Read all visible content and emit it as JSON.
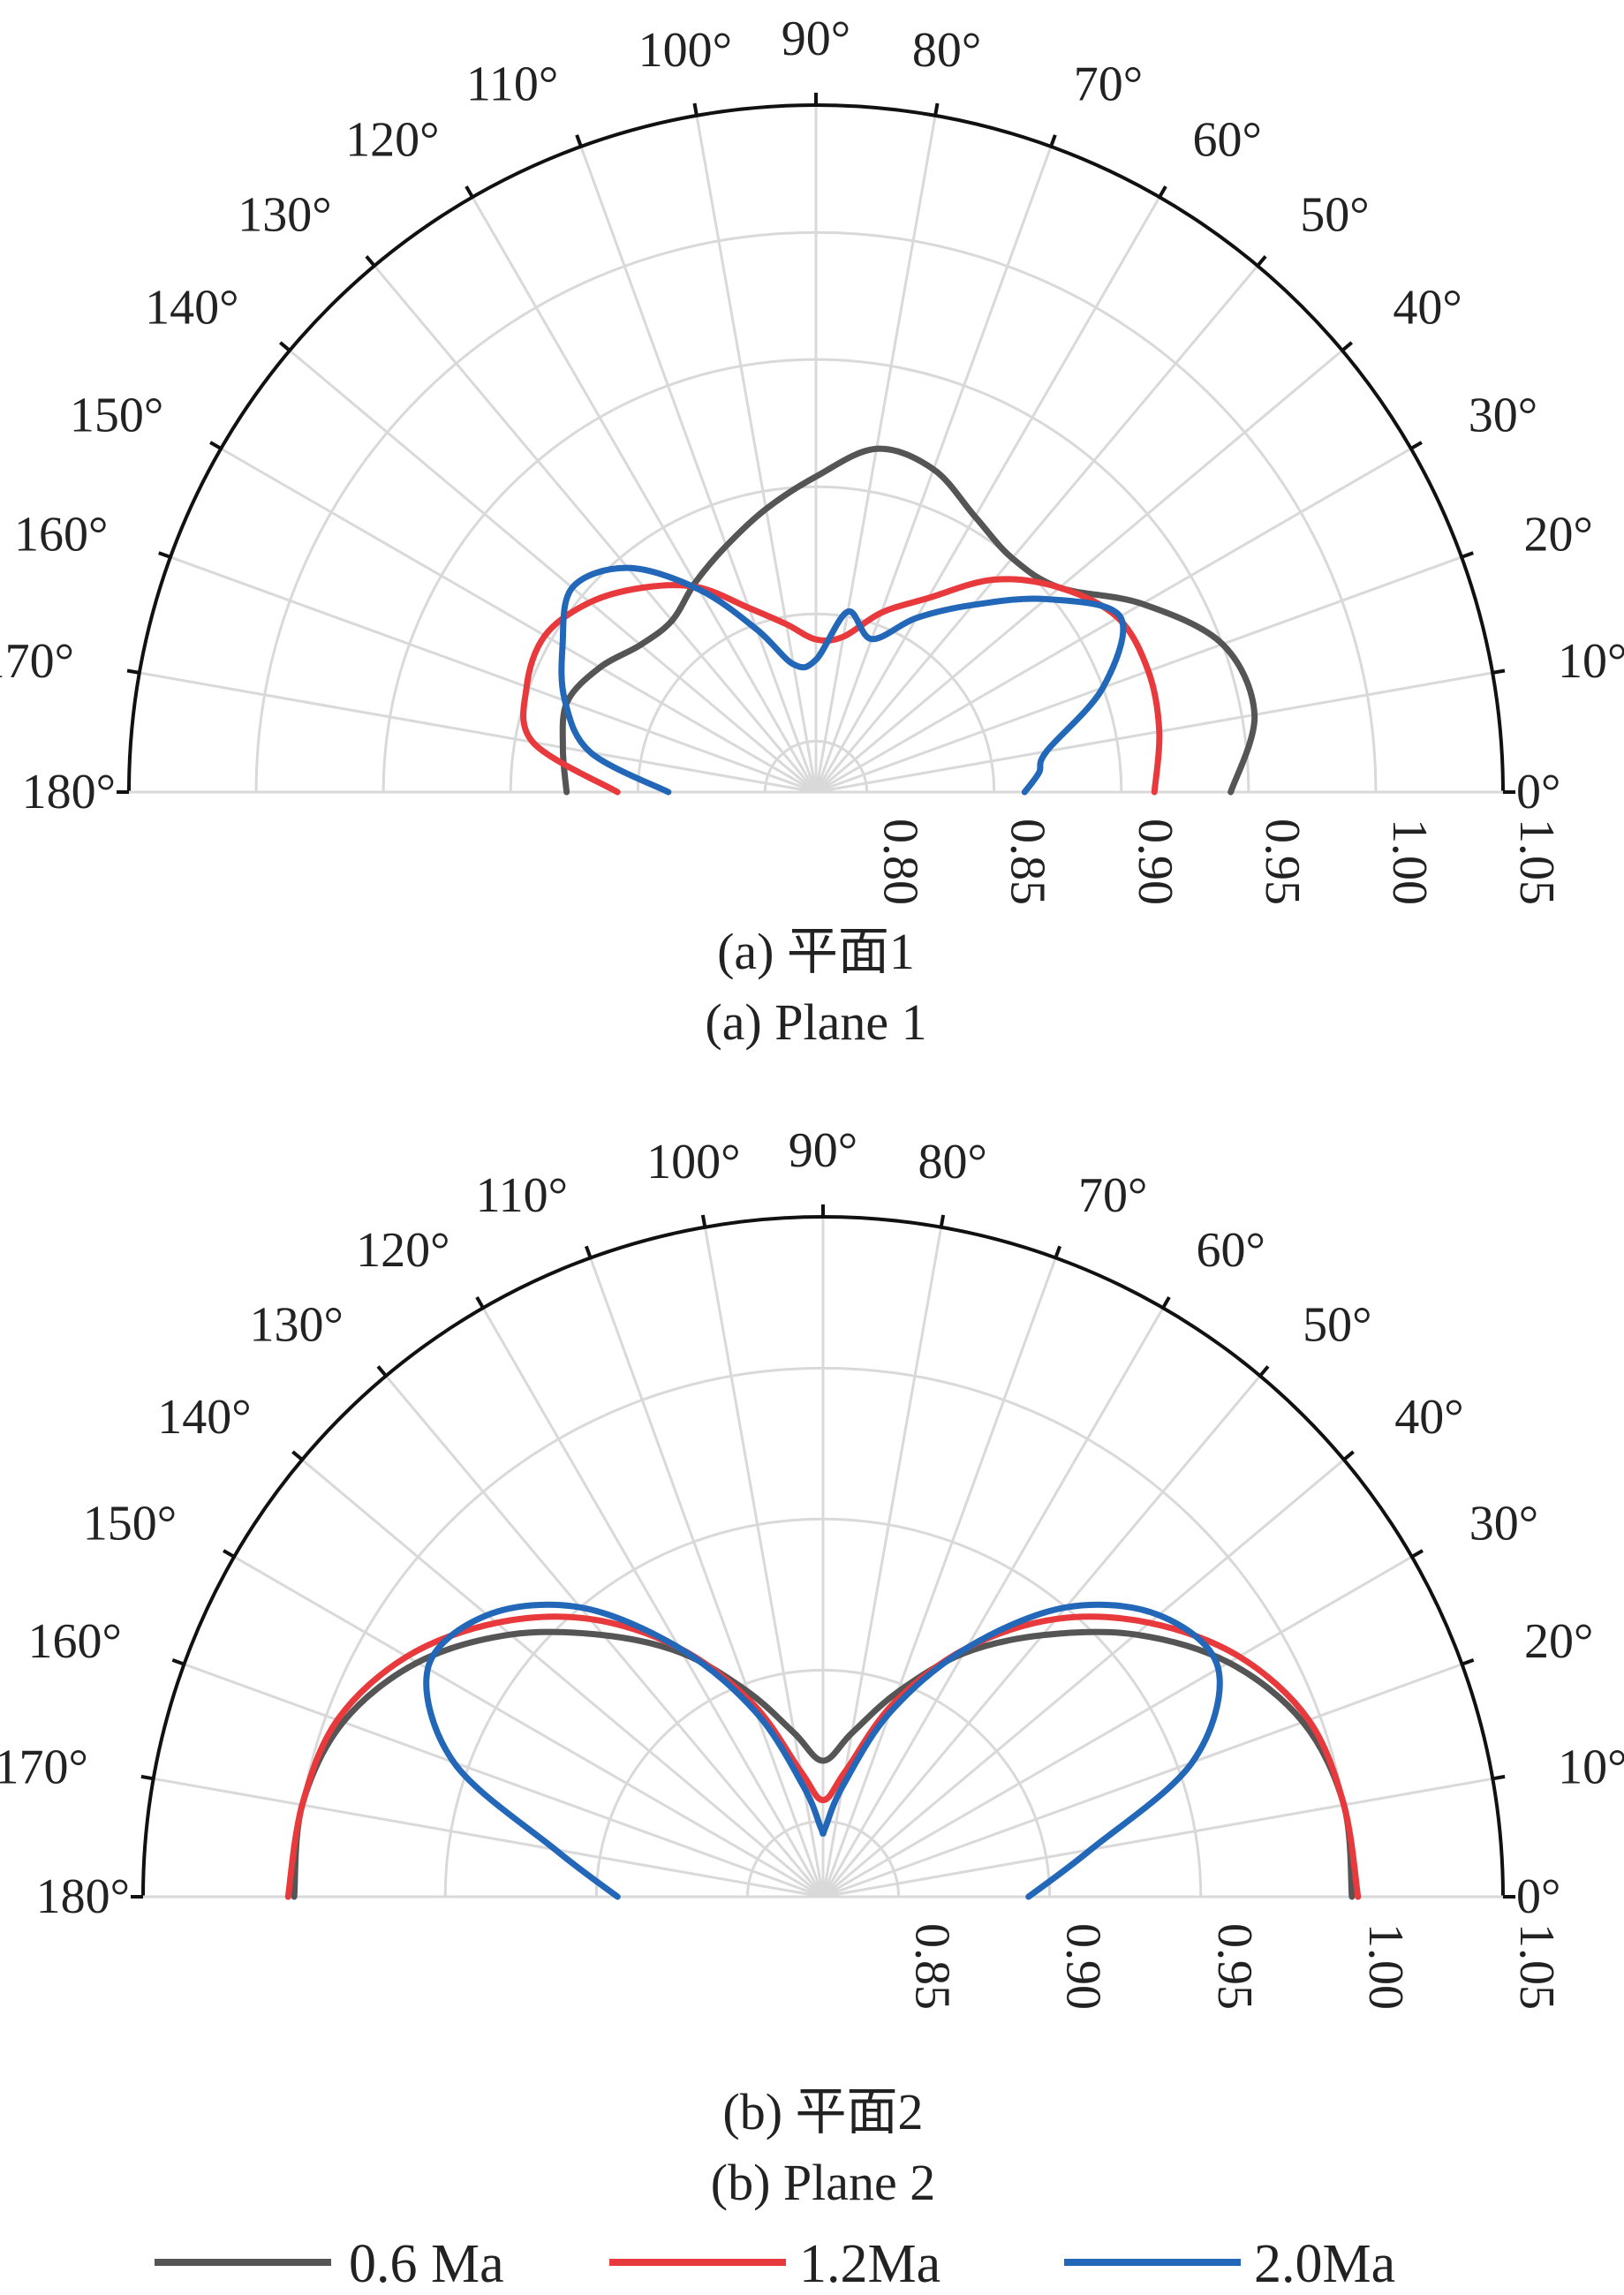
{
  "colors": {
    "s1": "#555555",
    "s2": "#e8393c",
    "s3": "#2367b8"
  },
  "chart_data": [
    {
      "type": "polar",
      "caption_cn": "(a) 平面1",
      "caption_en": "(a) Plane 1",
      "theta_range_deg": [
        0,
        180
      ],
      "theta_tick_step_deg": 10,
      "rlim": [
        0.78,
        1.05
      ],
      "r_tick_values": [
        0.8,
        0.85,
        0.9,
        0.95,
        1.0,
        1.05
      ],
      "r_tick_labels": [
        "0.80",
        "0.85",
        "0.90",
        "0.95",
        "1.00",
        "1.05"
      ],
      "grid": true,
      "series": [
        {
          "name": "0.6 Ma",
          "color_key": "s1",
          "points": [
            [
              0,
              0.943
            ],
            [
              10,
              0.955
            ],
            [
              20,
              0.95
            ],
            [
              30,
              0.928
            ],
            [
              40,
              0.905
            ],
            [
              50,
              0.9
            ],
            [
              60,
              0.905
            ],
            [
              70,
              0.915
            ],
            [
              80,
              0.917
            ],
            [
              90,
              0.904
            ],
            [
              100,
              0.893
            ],
            [
              110,
              0.883
            ],
            [
              120,
              0.875
            ],
            [
              130,
              0.868
            ],
            [
              140,
              0.87
            ],
            [
              150,
              0.878
            ],
            [
              160,
              0.884
            ],
            [
              170,
              0.881
            ],
            [
              180,
              0.878
            ]
          ]
        },
        {
          "name": "1.2Ma",
          "color_key": "s2",
          "points": [
            [
              0,
              0.913
            ],
            [
              10,
              0.917
            ],
            [
              20,
              0.919
            ],
            [
              30,
              0.917
            ],
            [
              40,
              0.905
            ],
            [
              50,
              0.889
            ],
            [
              60,
              0.868
            ],
            [
              70,
              0.855
            ],
            [
              80,
              0.842
            ],
            [
              90,
              0.84
            ],
            [
              100,
              0.847
            ],
            [
              110,
              0.857
            ],
            [
              120,
              0.873
            ],
            [
              130,
              0.885
            ],
            [
              140,
              0.896
            ],
            [
              150,
              0.903
            ],
            [
              160,
              0.901
            ],
            [
              170,
              0.893
            ],
            [
              180,
              0.858
            ]
          ]
        },
        {
          "name": "2.0Ma",
          "color_key": "s3",
          "points": [
            [
              0,
              0.862
            ],
            [
              5,
              0.868
            ],
            [
              10,
              0.872
            ],
            [
              20,
              0.9
            ],
            [
              30,
              0.918
            ],
            [
              40,
              0.898
            ],
            [
              50,
              0.876
            ],
            [
              60,
              0.859
            ],
            [
              70,
              0.844
            ],
            [
              80,
              0.852
            ],
            [
              90,
              0.832
            ],
            [
              100,
              0.831
            ],
            [
              110,
              0.848
            ],
            [
              120,
              0.872
            ],
            [
              130,
              0.895
            ],
            [
              140,
              0.905
            ],
            [
              150,
              0.895
            ],
            [
              160,
              0.885
            ],
            [
              170,
              0.87
            ],
            [
              180,
              0.838
            ]
          ]
        }
      ]
    },
    {
      "type": "polar",
      "caption_cn": "(b) 平面2",
      "caption_en": "(b) Plane 2",
      "theta_range_deg": [
        0,
        180
      ],
      "theta_tick_step_deg": 10,
      "rlim": [
        0.825,
        1.05
      ],
      "r_tick_values": [
        0.85,
        0.9,
        0.95,
        1.0,
        1.05
      ],
      "r_tick_labels": [
        "0.85",
        "0.90",
        "0.95",
        "1.00",
        "1.05"
      ],
      "grid": true,
      "series": [
        {
          "name": "0.6 Ma",
          "color_key": "s1",
          "points": [
            [
              0,
              1.0
            ],
            [
              10,
              1.0
            ],
            [
              20,
              0.994
            ],
            [
              30,
              0.98
            ],
            [
              40,
              0.96
            ],
            [
              50,
              0.938
            ],
            [
              60,
              0.918
            ],
            [
              70,
              0.897
            ],
            [
              80,
              0.88
            ],
            [
              90,
              0.87
            ],
            [
              100,
              0.88
            ],
            [
              110,
              0.897
            ],
            [
              120,
              0.918
            ],
            [
              130,
              0.938
            ],
            [
              140,
              0.96
            ],
            [
              150,
              0.98
            ],
            [
              160,
              0.994
            ],
            [
              170,
              1.0
            ],
            [
              180,
              1.0
            ]
          ]
        },
        {
          "name": "1.2Ma",
          "color_key": "s2",
          "points": [
            [
              0,
              1.002
            ],
            [
              10,
              1.0
            ],
            [
              20,
              0.996
            ],
            [
              30,
              0.984
            ],
            [
              40,
              0.966
            ],
            [
              50,
              0.945
            ],
            [
              60,
              0.92
            ],
            [
              70,
              0.893
            ],
            [
              80,
              0.867
            ],
            [
              90,
              0.857
            ],
            [
              100,
              0.867
            ],
            [
              110,
              0.893
            ],
            [
              120,
              0.92
            ],
            [
              130,
              0.945
            ],
            [
              140,
              0.966
            ],
            [
              150,
              0.984
            ],
            [
              160,
              0.996
            ],
            [
              170,
              1.0
            ],
            [
              180,
              1.002
            ]
          ]
        },
        {
          "name": "2.0Ma",
          "color_key": "s3",
          "points": [
            [
              0,
              0.893
            ],
            [
              10,
              0.915
            ],
            [
              20,
              0.955
            ],
            [
              30,
              0.976
            ],
            [
              40,
              0.97
            ],
            [
              50,
              0.95
            ],
            [
              60,
              0.92
            ],
            [
              70,
              0.89
            ],
            [
              80,
              0.862
            ],
            [
              88,
              0.848
            ],
            [
              90,
              0.846
            ],
            [
              92,
              0.848
            ],
            [
              100,
              0.862
            ],
            [
              110,
              0.89
            ],
            [
              120,
              0.92
            ],
            [
              130,
              0.95
            ],
            [
              140,
              0.97
            ],
            [
              150,
              0.976
            ],
            [
              160,
              0.955
            ],
            [
              170,
              0.915
            ],
            [
              180,
              0.893
            ]
          ]
        }
      ]
    }
  ],
  "legend": [
    {
      "label": "0.6 Ma",
      "color_key": "s1"
    },
    {
      "label": "1.2Ma",
      "color_key": "s2"
    },
    {
      "label": "2.0Ma",
      "color_key": "s3"
    }
  ]
}
